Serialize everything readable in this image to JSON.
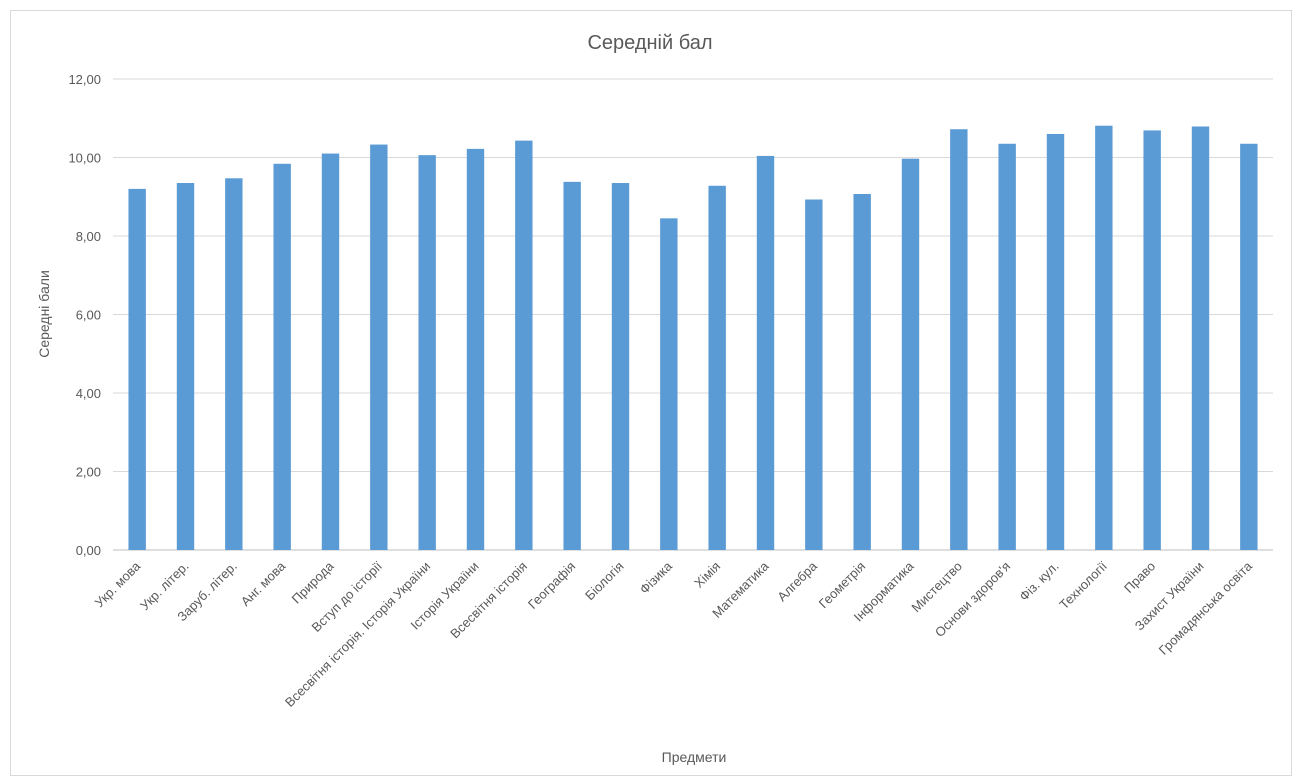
{
  "chart_data": {
    "type": "bar",
    "title": "Середній бал",
    "xlabel": "Предмети",
    "ylabel": "Середні бали",
    "ylim": [
      0,
      12
    ],
    "yticks": [
      "0,00",
      "2,00",
      "4,00",
      "6,00",
      "8,00",
      "10,00",
      "12,00"
    ],
    "grid": true,
    "bar_color": "#5b9bd5",
    "categories": [
      "Укр. мова",
      "Укр. літер.",
      "Заруб. літер.",
      "Анг. мова",
      "Природа",
      "Вступ до історії",
      "Всесвітня історія. Історія України",
      "Історія України",
      "Всесвітня історія",
      "Географія",
      "Біологія",
      "Фізика",
      "Хімія",
      "Математика",
      "Алгебра",
      "Геометрія",
      "Інформатика",
      "Мистецтво",
      "Основи здоров'я",
      "Фіз. кул.",
      "Технології",
      "Право",
      "Захист України",
      "Громадянська освіта"
    ],
    "values": [
      9.2,
      9.35,
      9.47,
      9.84,
      10.1,
      10.33,
      10.06,
      10.22,
      10.43,
      9.38,
      9.35,
      8.45,
      9.28,
      10.04,
      8.93,
      9.07,
      9.97,
      10.72,
      10.35,
      10.6,
      10.81,
      10.69,
      10.79,
      10.35
    ]
  }
}
